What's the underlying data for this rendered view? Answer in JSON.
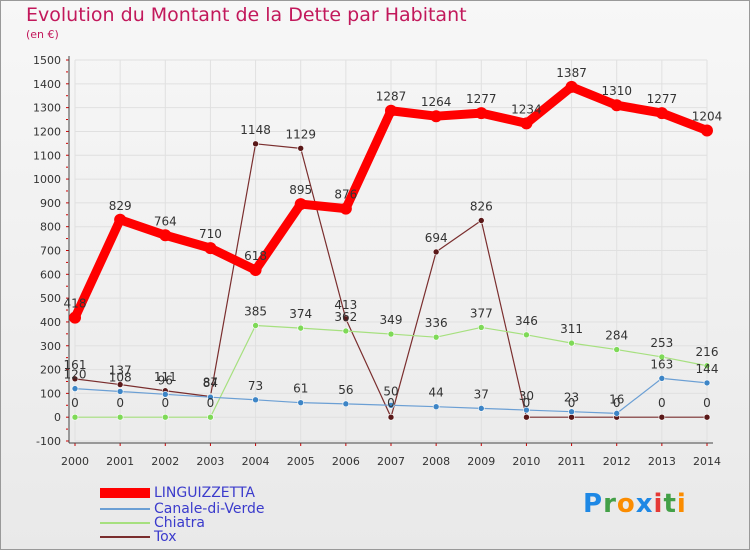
{
  "chart_data": {
    "type": "line",
    "title": "Evolution du Montant de la Dette par Habitant",
    "unit_label": "(en €)",
    "x": [
      "2000",
      "2001",
      "2002",
      "2003",
      "2004",
      "2005",
      "2006",
      "2007",
      "2008",
      "2009",
      "2010",
      "2011",
      "2012",
      "2013",
      "2014"
    ],
    "ylim": [
      -100,
      1500
    ],
    "yticks": [
      -100,
      0,
      100,
      200,
      300,
      400,
      500,
      600,
      700,
      800,
      900,
      1000,
      1100,
      1200,
      1300,
      1400,
      1500
    ],
    "grid": true,
    "legend_position": "bottom-left",
    "series": [
      {
        "name": "LINGUIZZETTA",
        "color": "#ff0000",
        "marker_color": "#ff0000",
        "values": [
          418,
          829,
          764,
          710,
          618,
          895,
          876,
          1287,
          1264,
          1277,
          1234,
          1387,
          1310,
          1277,
          1204
        ]
      },
      {
        "name": "Canale-di-Verde",
        "color": "#6b9fd4",
        "marker_color": "#3d85c6",
        "values": [
          120,
          108,
          96,
          84,
          73,
          61,
          56,
          50,
          44,
          37,
          30,
          23,
          16,
          163,
          144
        ]
      },
      {
        "name": "Chiatra",
        "color": "#a6e07f",
        "marker_color": "#7ed957",
        "values": [
          0,
          0,
          0,
          0,
          385,
          374,
          362,
          349,
          336,
          377,
          346,
          311,
          284,
          253,
          216
        ]
      },
      {
        "name": "Tox",
        "color": "#7a2e2e",
        "marker_color": "#5a1818",
        "values": [
          161,
          137,
          111,
          87,
          1148,
          1129,
          413,
          0,
          694,
          826,
          0,
          0,
          0,
          0,
          0
        ]
      }
    ]
  },
  "logo": {
    "letters": [
      "P",
      "r",
      "o",
      "x",
      "i",
      "t",
      "i"
    ],
    "colors": [
      "#1e88e5",
      "#43a047",
      "#fb8c00",
      "#1e88e5",
      "#e53935",
      "#43a047",
      "#fb8c00"
    ]
  }
}
